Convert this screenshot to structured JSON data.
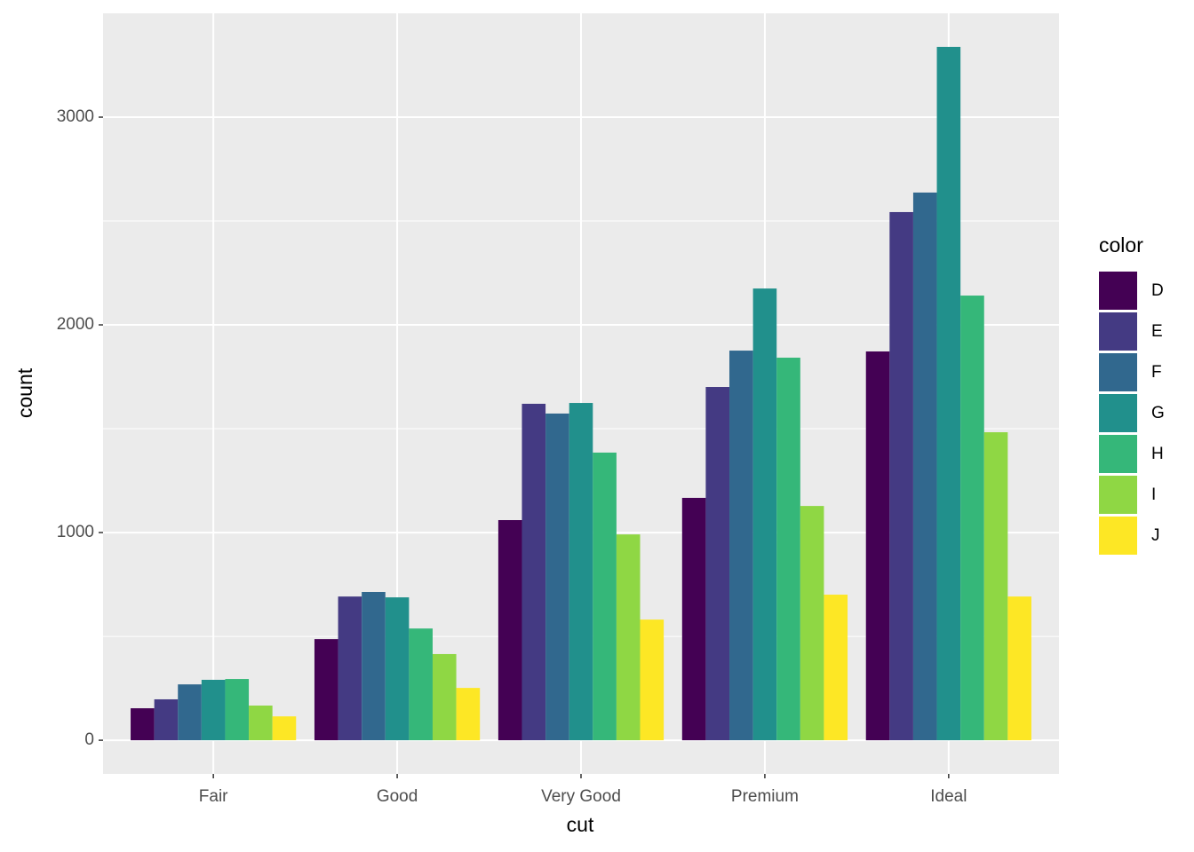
{
  "chart_data": {
    "type": "bar",
    "x_label": "cut",
    "y_label": "count",
    "legend_title": "color",
    "legend_position": "right",
    "categories": [
      "Fair",
      "Good",
      "Very Good",
      "Premium",
      "Ideal"
    ],
    "series": [
      {
        "name": "D",
        "color": "#440154",
        "values": [
          154,
          487,
          1060,
          1167,
          1872
        ]
      },
      {
        "name": "E",
        "color": "#443A83",
        "values": [
          197,
          692,
          1620,
          1701,
          2543
        ]
      },
      {
        "name": "F",
        "color": "#31688E",
        "values": [
          269,
          714,
          1573,
          1876,
          2637
        ]
      },
      {
        "name": "G",
        "color": "#21908C",
        "values": [
          291,
          688,
          1624,
          2175,
          3338
        ]
      },
      {
        "name": "H",
        "color": "#35B779",
        "values": [
          295,
          538,
          1385,
          1842,
          2141
        ]
      },
      {
        "name": "I",
        "color": "#8FD744",
        "values": [
          167,
          415,
          991,
          1128,
          1483
        ]
      },
      {
        "name": "J",
        "color": "#FDE725",
        "values": [
          115,
          252,
          581,
          701,
          692
        ]
      }
    ],
    "ylim": [
      -162,
      3500
    ],
    "yticks": [
      0,
      1000,
      2000,
      3000
    ],
    "y_minor_ticks": [
      500,
      1500,
      2500
    ],
    "grid": true
  }
}
